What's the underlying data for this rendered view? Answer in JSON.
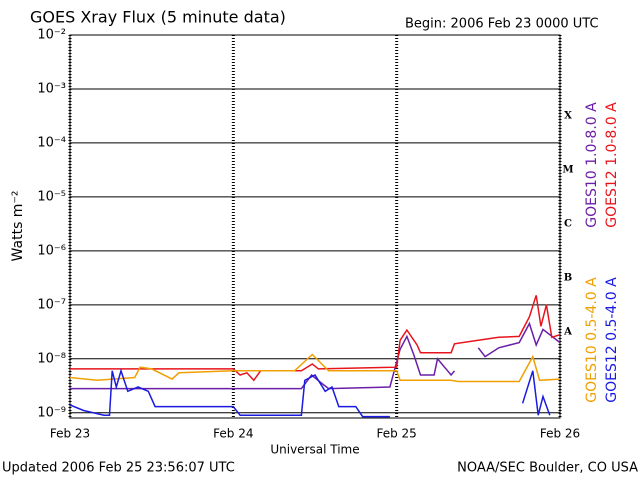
{
  "chart_data": {
    "type": "line",
    "title": "GOES Xray Flux (5 minute data)",
    "subtitle": "Begin:  2006 Feb 23 0000 UTC",
    "y_label": "Watts m⁻²",
    "x_label": "Universal Time",
    "footer_left": "Updated 2006 Feb 25 23:56:07 UTC",
    "footer_right": "NOAA/SEC Boulder, CO USA",
    "log_y": true,
    "grid": true,
    "xlim": [
      0,
      72
    ],
    "xticks": [
      {
        "value": 0,
        "label": "Feb 23"
      },
      {
        "value": 24,
        "label": "Feb 24"
      },
      {
        "value": 48,
        "label": "Feb 25"
      },
      {
        "value": 72,
        "label": "Feb 26"
      }
    ],
    "ylim": [
      8e-10,
      0.01
    ],
    "yticks": [
      {
        "value": 1e-09,
        "label": "10⁻⁹"
      },
      {
        "value": 1e-08,
        "label": "10⁻⁸"
      },
      {
        "value": 1e-07,
        "label": "10⁻⁷"
      },
      {
        "value": 1e-06,
        "label": "10⁻⁶"
      },
      {
        "value": 1e-05,
        "label": "10⁻⁵"
      },
      {
        "value": 0.0001,
        "label": "10⁻⁴"
      },
      {
        "value": 0.001,
        "label": "10⁻³"
      },
      {
        "value": 0.01,
        "label": "10⁻²"
      }
    ],
    "flare_classes": [
      "X",
      "M",
      "C",
      "B",
      "A"
    ],
    "series": [
      {
        "name": "GOES10 1.0-8.0 A",
        "color": "#6a1fa8",
        "x": [
          0,
          34,
          35.5,
          37,
          38,
          47,
          48.5,
          49.5,
          50.5,
          51.5,
          53.5,
          54,
          56,
          56.5,
          58,
          60,
          61,
          63,
          66,
          67.5,
          68.5,
          69.5,
          72
        ],
        "values": [
          2.8e-09,
          2.8e-09,
          5e-09,
          3.5e-09,
          2.8e-09,
          3e-09,
          1.5e-08,
          2.6e-08,
          1.2e-08,
          5e-09,
          5e-09,
          1e-08,
          5e-09,
          6e-09,
          null,
          1.6e-08,
          1.1e-08,
          1.6e-08,
          2e-08,
          4.5e-08,
          1.8e-08,
          3.5e-08,
          2e-08
        ]
      },
      {
        "name": "GOES12 1.0-8.0 A",
        "color": "#e8141c",
        "x": [
          0,
          24,
          25,
          26,
          27,
          28,
          34,
          35.6,
          36.5,
          48,
          48.5,
          49.5,
          51,
          51.5,
          56,
          56.5,
          60,
          63,
          66,
          67.5,
          68.5,
          69.2,
          70,
          70.8,
          72
        ],
        "values": [
          6.5e-09,
          6.5e-09,
          5e-09,
          5.5e-09,
          4e-09,
          6e-09,
          6e-09,
          8e-09,
          6.5e-09,
          7e-09,
          2.2e-08,
          3.4e-08,
          1.8e-08,
          1.3e-08,
          1.3e-08,
          1.9e-08,
          2.2e-08,
          2.5e-08,
          2.6e-08,
          6e-08,
          1.5e-07,
          4e-08,
          1e-07,
          2.5e-08,
          2.8e-08
        ]
      },
      {
        "name": "GOES10 0.5-4.0 A",
        "color": "#f0a000",
        "x": [
          0,
          4,
          9.5,
          10.3,
          12,
          15,
          16,
          24,
          33,
          35.6,
          37,
          38,
          48,
          48.5,
          56,
          57,
          66,
          68,
          69,
          72
        ],
        "values": [
          4.5e-09,
          4e-09,
          4.5e-09,
          7e-09,
          6.5e-09,
          4.2e-09,
          5.5e-09,
          6e-09,
          6e-09,
          1.2e-08,
          8e-09,
          6e-09,
          6e-09,
          4e-09,
          4e-09,
          3.8e-09,
          3.8e-09,
          1.1e-08,
          4e-09,
          4.2e-09
        ]
      },
      {
        "name": "GOES12 0.5-4.0 A",
        "color": "#1a1ae0",
        "x": [
          0,
          2,
          5,
          5.8,
          6.2,
          6.8,
          7.5,
          8.5,
          10,
          11.5,
          12.5,
          24,
          25,
          34,
          34.5,
          36,
          37.5,
          38.5,
          39.5,
          42,
          43,
          47,
          55,
          66.5,
          68,
          68.8,
          69.5,
          70.5
        ],
        "values": [
          1.4e-09,
          1.1e-09,
          9e-10,
          9e-10,
          6e-09,
          3e-09,
          6e-09,
          2.5e-09,
          3e-09,
          2.5e-09,
          1.3e-09,
          1.3e-09,
          9e-10,
          9e-10,
          4e-09,
          5e-09,
          2.5e-09,
          3e-09,
          1.3e-09,
          1.3e-09,
          8.5e-10,
          8.5e-10,
          null,
          1.5e-09,
          6e-09,
          9e-10,
          2e-09,
          9e-10
        ]
      }
    ]
  }
}
